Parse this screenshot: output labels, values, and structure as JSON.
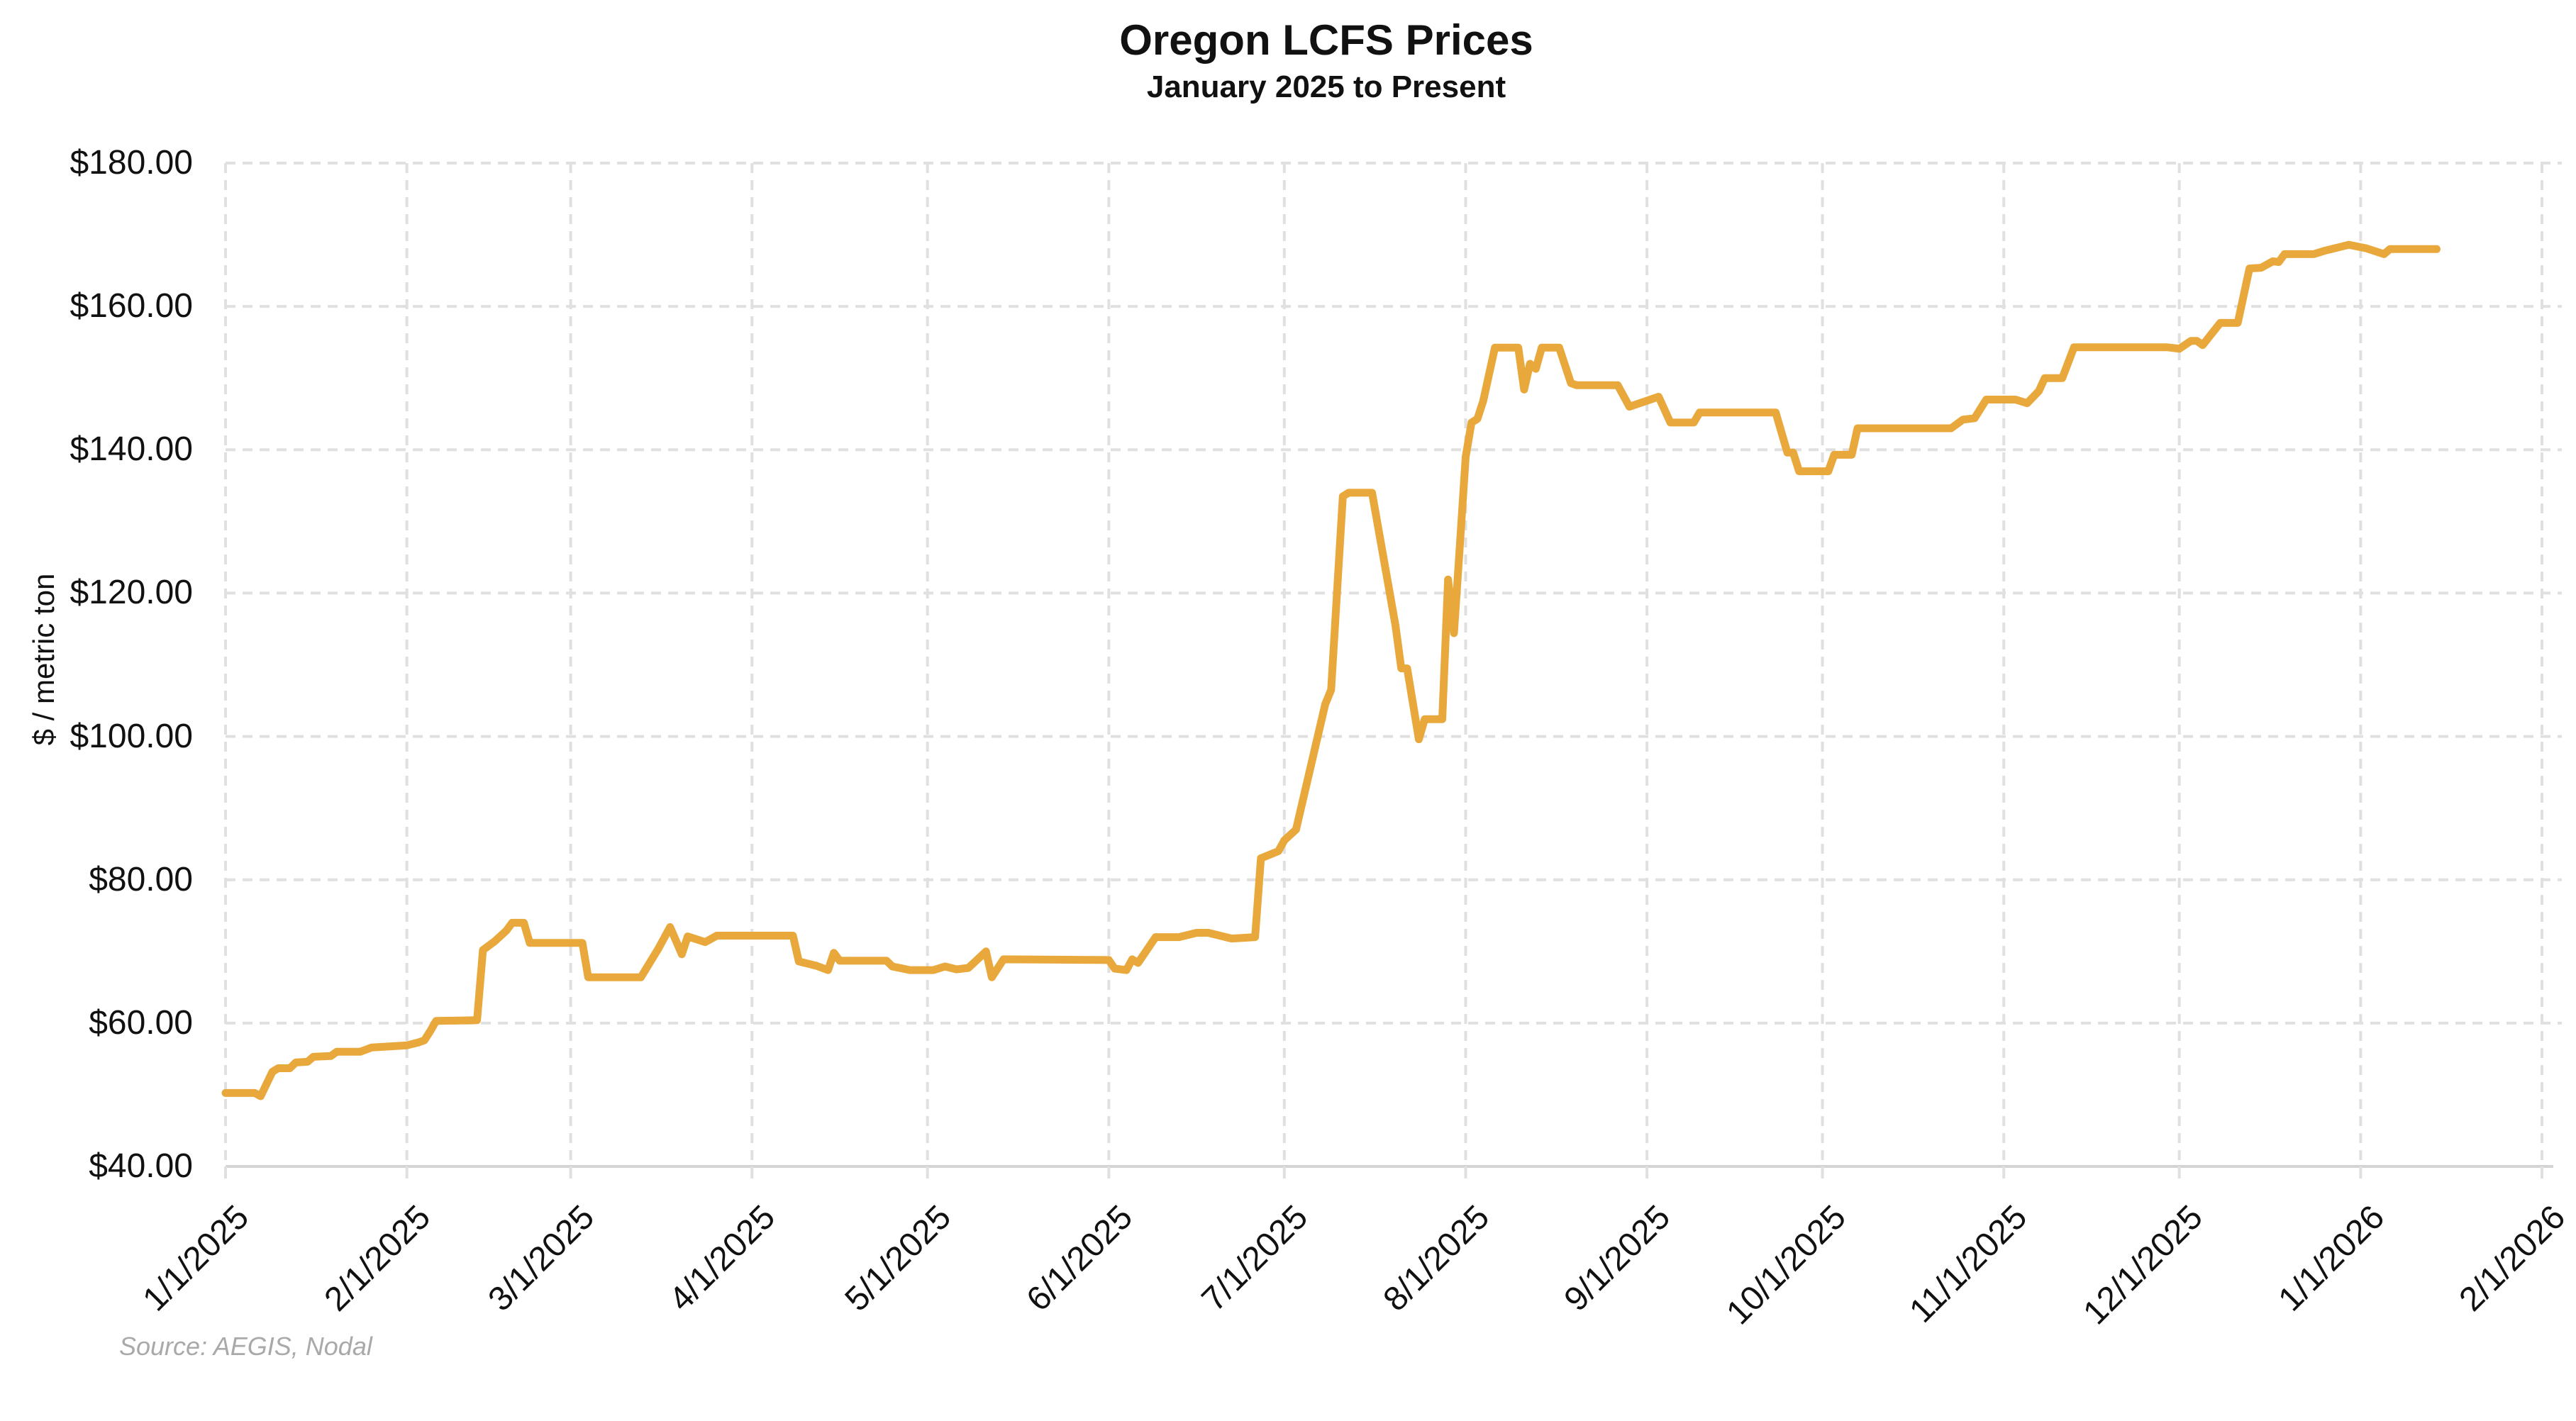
{
  "header": {
    "title": "Oregon LCFS Prices",
    "subtitle": "January 2025 to Present"
  },
  "source_note": "Source: AEGIS, Nodal",
  "colors": {
    "line": "#E9A83C",
    "gridline": "#E0E0E0",
    "axis_line": "#D4D4D4",
    "tick_text": "#111111",
    "title_text": "#111111",
    "source_text": "#A9A9A9",
    "background": "#FFFFFF"
  },
  "chart_data": {
    "type": "line",
    "title": "Oregon LCFS Prices",
    "subtitle": "January 2025 to Present",
    "xlabel": "",
    "ylabel": "$ / metric ton",
    "ylim": [
      40,
      180
    ],
    "x_range": [
      "1/1/2025",
      "2/1/2026"
    ],
    "grid": "dashed-both-axes",
    "legend_position": "none",
    "y_ticks": [
      {
        "value": 40,
        "label": "$40.00"
      },
      {
        "value": 60,
        "label": "$60.00"
      },
      {
        "value": 80,
        "label": "$80.00"
      },
      {
        "value": 100,
        "label": "$100.00"
      },
      {
        "value": 120,
        "label": "$120.00"
      },
      {
        "value": 140,
        "label": "$140.00"
      },
      {
        "value": 160,
        "label": "$160.00"
      },
      {
        "value": 180,
        "label": "$180.00"
      }
    ],
    "x_ticks": [
      {
        "date": "1/1/2025",
        "label": "1/1/2025"
      },
      {
        "date": "2/1/2025",
        "label": "2/1/2025"
      },
      {
        "date": "3/1/2025",
        "label": "3/1/2025"
      },
      {
        "date": "4/1/2025",
        "label": "4/1/2025"
      },
      {
        "date": "5/1/2025",
        "label": "5/1/2025"
      },
      {
        "date": "6/1/2025",
        "label": "6/1/2025"
      },
      {
        "date": "7/1/2025",
        "label": "7/1/2025"
      },
      {
        "date": "8/1/2025",
        "label": "8/1/2025"
      },
      {
        "date": "9/1/2025",
        "label": "9/1/2025"
      },
      {
        "date": "10/1/2025",
        "label": "10/1/2025"
      },
      {
        "date": "11/1/2025",
        "label": "11/1/2025"
      },
      {
        "date": "12/1/2025",
        "label": "12/1/2025"
      },
      {
        "date": "1/1/2026",
        "label": "1/1/2026"
      },
      {
        "date": "2/1/2026",
        "label": "2/1/2026"
      }
    ],
    "series": [
      {
        "name": "Oregon LCFS price",
        "color": "#E9A83C",
        "points": [
          [
            "1/1/2025",
            50.25
          ],
          [
            "1/6/2025",
            50.25
          ],
          [
            "1/7/2025",
            49.8
          ],
          [
            "1/9/2025",
            53.2
          ],
          [
            "1/10/2025",
            53.7
          ],
          [
            "1/12/2025",
            53.7
          ],
          [
            "1/13/2025",
            54.5
          ],
          [
            "1/15/2025",
            54.6
          ],
          [
            "1/16/2025",
            55.3
          ],
          [
            "1/19/2025",
            55.4
          ],
          [
            "1/20/2025",
            56.0
          ],
          [
            "1/24/2025",
            56.0
          ],
          [
            "1/26/2025",
            56.6
          ],
          [
            "2/1/2025",
            56.9
          ],
          [
            "2/3/2025",
            57.3
          ],
          [
            "2/4/2025",
            57.6
          ],
          [
            "2/5/2025",
            58.9
          ],
          [
            "2/6/2025",
            60.3
          ],
          [
            "2/13/2025",
            60.4
          ],
          [
            "2/14/2025",
            70.2
          ],
          [
            "2/16/2025",
            71.4
          ],
          [
            "2/18/2025",
            72.9
          ],
          [
            "2/19/2025",
            74.0
          ],
          [
            "2/21/2025",
            74.0
          ],
          [
            "2/22/2025",
            71.2
          ],
          [
            "3/3/2025",
            71.2
          ],
          [
            "3/4/2025",
            66.4
          ],
          [
            "3/13/2025",
            66.4
          ],
          [
            "3/16/2025",
            70.4
          ],
          [
            "3/18/2025",
            73.4
          ],
          [
            "3/20/2025",
            69.6
          ],
          [
            "3/21/2025",
            72.1
          ],
          [
            "3/24/2025",
            71.3
          ],
          [
            "3/26/2025",
            72.2
          ],
          [
            "4/8/2025",
            72.2
          ],
          [
            "4/9/2025",
            68.6
          ],
          [
            "4/12/2025",
            68.0
          ],
          [
            "4/14/2025",
            67.4
          ],
          [
            "4/15/2025",
            69.8
          ],
          [
            "4/16/2025",
            68.7
          ],
          [
            "4/24/2025",
            68.7
          ],
          [
            "4/25/2025",
            67.9
          ],
          [
            "4/28/2025",
            67.4
          ],
          [
            "5/2/2025",
            67.4
          ],
          [
            "5/4/2025",
            67.9
          ],
          [
            "5/6/2025",
            67.5
          ],
          [
            "5/8/2025",
            67.7
          ],
          [
            "5/11/2025",
            70.0
          ],
          [
            "5/12/2025",
            66.4
          ],
          [
            "5/14/2025",
            68.9
          ],
          [
            "6/1/2025",
            68.8
          ],
          [
            "6/2/2025",
            67.6
          ],
          [
            "6/4/2025",
            67.4
          ],
          [
            "6/5/2025",
            68.9
          ],
          [
            "6/6/2025",
            68.4
          ],
          [
            "6/9/2025",
            72.0
          ],
          [
            "6/13/2025",
            72.0
          ],
          [
            "6/16/2025",
            72.6
          ],
          [
            "6/18/2025",
            72.6
          ],
          [
            "6/22/2025",
            71.8
          ],
          [
            "6/26/2025",
            72.0
          ],
          [
            "6/27/2025",
            83.0
          ],
          [
            "6/30/2025",
            84.0
          ],
          [
            "7/1/2025",
            85.5
          ],
          [
            "7/3/2025",
            87.0
          ],
          [
            "7/8/2025",
            104.5
          ],
          [
            "7/9/2025",
            106.5
          ],
          [
            "7/11/2025",
            133.5
          ],
          [
            "7/12/2025",
            134.0
          ],
          [
            "7/16/2025",
            134.0
          ],
          [
            "7/20/2025",
            115.5
          ],
          [
            "7/21/2025",
            109.5
          ],
          [
            "7/22/2025",
            109.5
          ],
          [
            "7/24/2025",
            99.6
          ],
          [
            "7/25/2025",
            102.4
          ],
          [
            "7/28/2025",
            102.4
          ],
          [
            "7/29/2025",
            121.9
          ],
          [
            "7/30/2025",
            114.4
          ],
          [
            "7/31/2025",
            126.5
          ],
          [
            "8/1/2025",
            139.0
          ],
          [
            "8/2/2025",
            143.8
          ],
          [
            "8/3/2025",
            144.3
          ],
          [
            "8/4/2025",
            146.8
          ],
          [
            "8/6/2025",
            154.25
          ],
          [
            "8/10/2025",
            154.25
          ],
          [
            "8/11/2025",
            148.4
          ],
          [
            "8/12/2025",
            152.0
          ],
          [
            "8/13/2025",
            151.3
          ],
          [
            "8/14/2025",
            154.25
          ],
          [
            "8/17/2025",
            154.25
          ],
          [
            "8/19/2025",
            149.3
          ],
          [
            "8/20/2025",
            149.0
          ],
          [
            "8/27/2025",
            149.0
          ],
          [
            "8/29/2025",
            146.0
          ],
          [
            "9/3/2025",
            147.4
          ],
          [
            "9/5/2025",
            143.8
          ],
          [
            "9/9/2025",
            143.8
          ],
          [
            "9/10/2025",
            145.2
          ],
          [
            "9/23/2025",
            145.2
          ],
          [
            "9/25/2025",
            139.6
          ],
          [
            "9/26/2025",
            139.6
          ],
          [
            "9/27/2025",
            137.0
          ],
          [
            "10/2/2025",
            137.0
          ],
          [
            "10/3/2025",
            139.3
          ],
          [
            "10/6/2025",
            139.3
          ],
          [
            "10/7/2025",
            143.0
          ],
          [
            "10/23/2025",
            143.0
          ],
          [
            "10/25/2025",
            144.2
          ],
          [
            "10/27/2025",
            144.4
          ],
          [
            "10/29/2025",
            147.0
          ],
          [
            "11/3/2025",
            147.0
          ],
          [
            "11/5/2025",
            146.5
          ],
          [
            "11/7/2025",
            148.2
          ],
          [
            "11/8/2025",
            150.0
          ],
          [
            "11/11/2025",
            150.0
          ],
          [
            "11/13/2025",
            154.3
          ],
          [
            "11/29/2025",
            154.3
          ],
          [
            "12/1/2025",
            154.1
          ],
          [
            "12/3/2025",
            155.2
          ],
          [
            "12/4/2025",
            155.2
          ],
          [
            "12/5/2025",
            154.6
          ],
          [
            "12/8/2025",
            157.7
          ],
          [
            "12/11/2025",
            157.7
          ],
          [
            "12/13/2025",
            165.3
          ],
          [
            "12/15/2025",
            165.4
          ],
          [
            "12/17/2025",
            166.3
          ],
          [
            "12/18/2025",
            166.2
          ],
          [
            "12/19/2025",
            167.3
          ],
          [
            "12/24/2025",
            167.3
          ],
          [
            "12/26/2025",
            167.8
          ],
          [
            "12/30/2025",
            168.6
          ],
          [
            "1/2/2026",
            168.1
          ],
          [
            "1/5/2026",
            167.3
          ],
          [
            "1/6/2026",
            168.0
          ],
          [
            "1/14/2026",
            168.0
          ]
        ]
      }
    ]
  }
}
